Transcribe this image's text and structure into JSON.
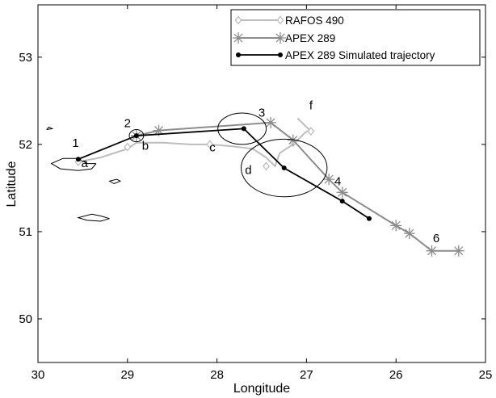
{
  "chart_data": {
    "type": "line",
    "title": "",
    "xlabel": "Longitude",
    "ylabel": "Latitude",
    "xlim": [
      30,
      25
    ],
    "ylim": [
      49.5,
      53.6
    ],
    "x_reversed": true,
    "xticks": [
      30,
      29,
      28,
      27,
      26,
      25
    ],
    "yticks": [
      50,
      51,
      52,
      53
    ],
    "xtick_labels": [
      "30",
      "29",
      "28",
      "27",
      "26",
      "25"
    ],
    "ytick_labels": [
      "50",
      "51",
      "52",
      "53"
    ],
    "grid": false,
    "legend_position": "top-right",
    "series": [
      {
        "name": "RAFOS 490",
        "color": "#bdbdbd",
        "marker": "diamond",
        "x": [
          29.55,
          29.3,
          29.0,
          28.9,
          28.6,
          28.3,
          28.08,
          27.85,
          27.6,
          27.45,
          27.35,
          27.3,
          27.15,
          27.0,
          26.95,
          27.1,
          26.95
        ],
        "y": [
          51.8,
          51.85,
          51.95,
          52.02,
          52.02,
          52.0,
          52.0,
          51.98,
          51.95,
          51.85,
          51.75,
          51.9,
          52.0,
          52.15,
          52.15,
          52.3,
          52.15
        ],
        "markers_x": [
          29.55,
          29.0,
          28.08,
          27.45,
          27.15,
          26.95
        ],
        "markers_y": [
          51.8,
          51.97,
          52.0,
          51.75,
          52.02,
          52.15
        ]
      },
      {
        "name": "APEX 289",
        "color": "#8c8c8c",
        "marker": "asterisk",
        "x": [
          28.9,
          28.65,
          27.4,
          27.15,
          26.75,
          26.6,
          26.0,
          25.85,
          25.6,
          25.3
        ],
        "y": [
          52.1,
          52.16,
          52.25,
          52.05,
          51.6,
          51.45,
          51.07,
          50.98,
          50.78,
          50.78
        ]
      },
      {
        "name": "APEX 289 Simulated trajectory",
        "color": "#000000",
        "marker": "dot",
        "x": [
          29.55,
          28.9,
          27.7,
          27.25,
          26.6,
          26.3
        ],
        "y": [
          51.83,
          52.1,
          52.18,
          51.73,
          51.35,
          51.15
        ]
      }
    ],
    "error_ellipses": [
      {
        "cx": 28.9,
        "cy": 52.1,
        "rx": 0.08,
        "ry": 0.07
      },
      {
        "cx": 27.72,
        "cy": 52.18,
        "rx": 0.27,
        "ry": 0.18
      },
      {
        "cx": 27.25,
        "cy": 51.73,
        "rx": 0.48,
        "ry": 0.33
      }
    ],
    "coastlines": [
      [
        [
          29.35,
          51.78
        ],
        [
          29.4,
          51.72
        ],
        [
          29.55,
          51.7
        ],
        [
          29.75,
          51.72
        ],
        [
          29.85,
          51.78
        ],
        [
          29.72,
          51.84
        ],
        [
          29.55,
          51.84
        ],
        [
          29.45,
          51.78
        ],
        [
          29.35,
          51.78
        ]
      ],
      [
        [
          29.12,
          51.6
        ],
        [
          29.08,
          51.58
        ],
        [
          29.15,
          51.55
        ],
        [
          29.2,
          51.58
        ],
        [
          29.12,
          51.6
        ]
      ],
      [
        [
          29.2,
          51.15
        ],
        [
          29.3,
          51.12
        ],
        [
          29.45,
          51.13
        ],
        [
          29.55,
          51.16
        ],
        [
          29.4,
          51.2
        ],
        [
          29.3,
          51.18
        ],
        [
          29.2,
          51.15
        ]
      ],
      [
        [
          29.88,
          52.2
        ],
        [
          29.84,
          52.18
        ],
        [
          29.9,
          52.17
        ],
        [
          29.88,
          52.2
        ]
      ]
    ],
    "annotations": [
      {
        "text": "1",
        "x": 29.58,
        "y": 51.97
      },
      {
        "text": "2",
        "x": 29.0,
        "y": 52.2
      },
      {
        "text": "3",
        "x": 27.5,
        "y": 52.32
      },
      {
        "text": "4",
        "x": 26.65,
        "y": 51.53
      },
      {
        "text": "6",
        "x": 25.55,
        "y": 50.88
      },
      {
        "text": "a",
        "x": 29.48,
        "y": 51.74
      },
      {
        "text": "b",
        "x": 28.8,
        "y": 51.94
      },
      {
        "text": "c",
        "x": 28.05,
        "y": 51.92
      },
      {
        "text": "d",
        "x": 27.65,
        "y": 51.66
      },
      {
        "text": "f",
        "x": 26.95,
        "y": 52.4
      }
    ]
  }
}
